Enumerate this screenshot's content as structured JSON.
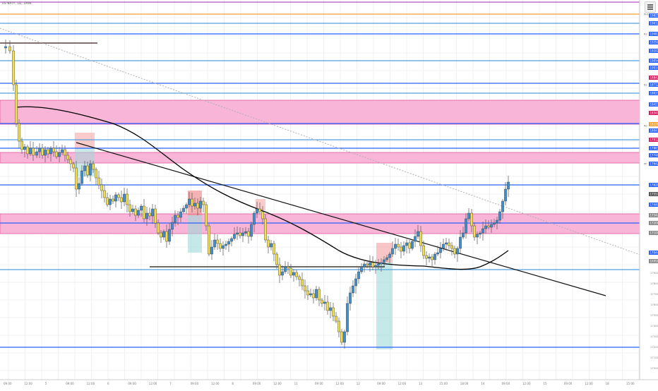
{
  "header": {
    "symbol": "US NATY, 1D, 1MIN",
    "settings_icon": "menu-icon"
  },
  "colors": {
    "bull_candle": "#3d8fd1",
    "bear_candle": "#f4e04d",
    "wick": "#555555",
    "zone_fill": "#f8b5d8",
    "zone_border": "#e05a9e",
    "level_blue": "#2962ff",
    "level_lightblue": "#55a0e0",
    "level_orange": "#f0a030",
    "level_black": "#000000",
    "ma_line": "#000000",
    "trend_dotted": "#b0b0b0",
    "supply_box": "#f4a0a0",
    "demand_box": "#9fd8d8"
  },
  "price_axis": {
    "tags": [
      {
        "text": "19825",
        "color": "#2962ff"
      },
      {
        "text": "19612",
        "color": "#2962ff"
      },
      {
        "text": "19483",
        "color": "#2962ff"
      },
      {
        "text": "19350",
        "color": "#2962ff"
      },
      {
        "text": "19202",
        "color": "#2962ff"
      },
      {
        "text": "19054",
        "color": "#2962ff"
      },
      {
        "text": "19014",
        "color": "#2962ff"
      },
      {
        "text": "18842",
        "color": "#d81b60"
      },
      {
        "text": "18712",
        "color": "#2962ff"
      },
      {
        "text": "18623",
        "color": "#2962ff"
      },
      {
        "text": "18427",
        "color": "#2962ff"
      },
      {
        "text": "18341",
        "color": "#d81b60"
      },
      {
        "text": "18226",
        "color": "#f0a030"
      },
      {
        "text": "18047",
        "color": "#2962ff"
      },
      {
        "text": "17912",
        "color": "#d81b60"
      },
      {
        "text": "17863",
        "color": "#2962ff"
      },
      {
        "text": "17748",
        "color": "#2962ff"
      },
      {
        "text": "17642",
        "color": "#2962ff"
      },
      {
        "text": "17620",
        "color": "#2962ff"
      },
      {
        "text": "17557",
        "color": "#555555"
      },
      {
        "text": "17440",
        "color": "#2962ff"
      },
      {
        "text": "17342",
        "color": "#888888"
      },
      {
        "text": "17200",
        "color": "#888888"
      },
      {
        "text": "17100",
        "color": "#888888"
      },
      {
        "text": "17044",
        "color": "#2962ff"
      },
      {
        "text": "16950",
        "color": "#888888"
      }
    ],
    "level_notes": [
      "PH1",
      "R3",
      "R1",
      "R0",
      "PP"
    ]
  },
  "time_axis": {
    "labels": [
      "09:00",
      "12:00",
      "5",
      "09:00",
      "12:00",
      "6",
      "09:00",
      "12:00",
      "7",
      "09:00",
      "12:00",
      "8",
      "09:00",
      "12:00",
      "11",
      "09:00",
      "12:00",
      "12",
      "09:00",
      "12:00",
      "13",
      "15:00",
      "18:00",
      "14",
      "09:00",
      "12:00",
      "15",
      "09:00",
      "12:00",
      "18",
      "15:00"
    ]
  }
}
